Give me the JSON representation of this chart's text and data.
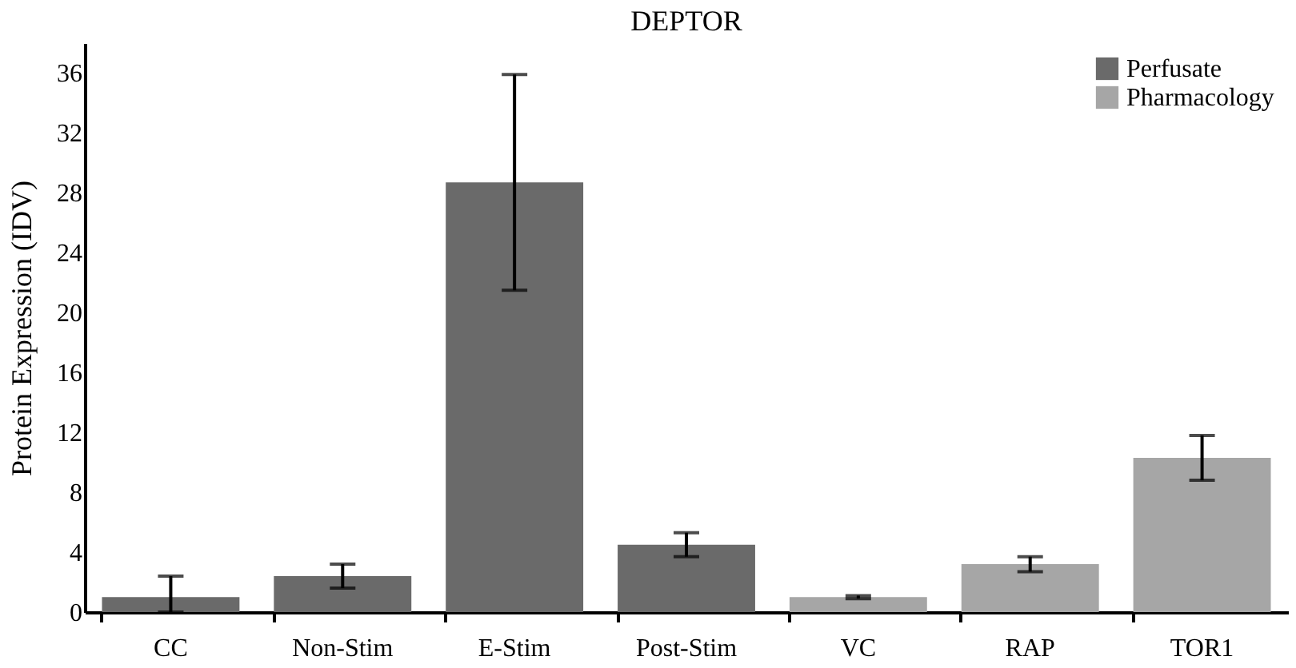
{
  "chart_data": {
    "type": "bar",
    "title": "DEPTOR",
    "ylabel": "Protein Expression (IDV)",
    "categories": [
      "CC",
      "Non-Stim",
      "E-Stim",
      "Post-Stim",
      "VC",
      "RAP",
      "TOR1"
    ],
    "series": [
      {
        "name": "Perfusate",
        "color": "#6a6a6a",
        "values": [
          1.0,
          2.4,
          28.7,
          4.5,
          null,
          null,
          null
        ],
        "errors": [
          [
            0,
            2.4
          ],
          0.8,
          7.2,
          0.8,
          null,
          null,
          null
        ]
      },
      {
        "name": "Pharmacology",
        "color": "#a6a6a6",
        "values": [
          null,
          null,
          null,
          null,
          1.0,
          3.2,
          10.3
        ],
        "errors": [
          null,
          null,
          null,
          null,
          0.1,
          0.5,
          1.5
        ]
      }
    ],
    "ylim": [
      0,
      38
    ],
    "yticks": [
      0,
      4,
      8,
      12,
      16,
      20,
      24,
      28,
      32,
      36
    ],
    "grid": false,
    "legend": "top right"
  }
}
